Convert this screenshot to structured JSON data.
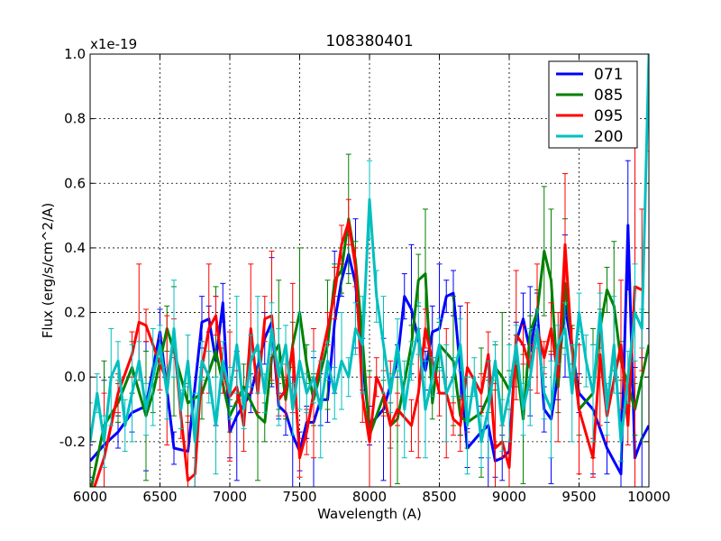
{
  "chart_data": {
    "type": "line",
    "title": "108380401",
    "xlabel": "Wavelength (A)",
    "ylabel": "Flux (erg/s/cm^2/A)",
    "y_offset_label": "x1e-19",
    "xlim": [
      6000,
      10000
    ],
    "ylim": [
      -0.34,
      1.0
    ],
    "x_ticks": [
      6000,
      6500,
      7000,
      7500,
      8000,
      8500,
      9000,
      9500,
      10000
    ],
    "x_tick_labels": [
      "6000",
      "6500",
      "7000",
      "7500",
      "8000",
      "8500",
      "9000",
      "9500",
      "10000"
    ],
    "y_ticks": [
      -0.2,
      0.0,
      0.2,
      0.4,
      0.6,
      0.8,
      1.0
    ],
    "y_tick_labels": [
      "-0.2",
      "0.0",
      "0.2",
      "0.4",
      "0.6",
      "0.8",
      "1.0"
    ],
    "grid": true,
    "legend_position": "top-right",
    "series": [
      {
        "name": "071",
        "color": "#0000ff",
        "x": [
          6000,
          6100,
          6200,
          6300,
          6400,
          6500,
          6600,
          6700,
          6800,
          6850,
          6900,
          6950,
          7000,
          7050,
          7150,
          7250,
          7300,
          7350,
          7400,
          7450,
          7500,
          7550,
          7600,
          7650,
          7700,
          7750,
          7800,
          7850,
          7900,
          7950,
          8000,
          8100,
          8200,
          8250,
          8300,
          8400,
          8450,
          8500,
          8550,
          8600,
          8650,
          8700,
          8800,
          8850,
          8900,
          8950,
          9000,
          9050,
          9100,
          9150,
          9200,
          9250,
          9300,
          9350,
          9400,
          9500,
          9600,
          9700,
          9800,
          9850,
          9900,
          9950,
          10000
        ],
        "y": [
          -0.26,
          -0.21,
          -0.17,
          -0.11,
          -0.09,
          0.14,
          -0.22,
          -0.23,
          0.17,
          0.18,
          0.05,
          0.23,
          -0.17,
          -0.12,
          -0.05,
          0.12,
          0.17,
          -0.09,
          -0.11,
          -0.18,
          -0.23,
          -0.14,
          -0.14,
          -0.07,
          -0.07,
          0.17,
          0.3,
          0.38,
          0.29,
          0.04,
          -0.15,
          -0.1,
          0.05,
          0.25,
          0.21,
          0.02,
          0.14,
          0.15,
          0.25,
          0.26,
          0.02,
          -0.22,
          -0.17,
          -0.15,
          -0.26,
          -0.25,
          -0.23,
          0.11,
          0.18,
          0.08,
          0.21,
          -0.1,
          -0.13,
          0.01,
          0.22,
          -0.05,
          -0.1,
          -0.22,
          -0.3,
          0.47,
          -0.25,
          -0.19,
          -0.15
        ],
        "err": [
          0.05,
          0.2,
          0.05,
          0.06,
          0.2,
          0.07,
          0.05,
          0.2,
          0.08,
          0.04,
          0.2,
          0.06,
          0.08,
          0.2,
          0.06,
          0.08,
          0.2,
          0.04,
          0.07,
          0.18,
          0.06,
          0.05,
          0.2,
          0.08,
          0.07,
          0.22,
          0.05,
          0.06,
          0.2,
          0.08,
          0.06,
          0.22,
          0.05,
          0.07,
          0.2,
          0.06,
          0.08,
          0.2,
          0.05,
          0.07,
          0.2,
          0.06,
          0.08,
          0.2,
          0.05,
          0.07,
          0.2,
          0.06,
          0.08,
          0.2,
          0.05,
          0.07,
          0.2,
          0.08,
          0.22,
          0.06,
          0.2,
          0.08,
          0.25,
          0.2,
          0.28,
          0.25,
          0.3
        ]
      },
      {
        "name": "085",
        "color": "#008000",
        "x": [
          6000,
          6100,
          6200,
          6300,
          6400,
          6450,
          6550,
          6600,
          6700,
          6800,
          6900,
          7000,
          7100,
          7200,
          7250,
          7300,
          7350,
          7400,
          7450,
          7500,
          7550,
          7600,
          7700,
          7750,
          7800,
          7850,
          7900,
          7950,
          8000,
          8100,
          8150,
          8200,
          8300,
          8350,
          8400,
          8450,
          8500,
          8600,
          8650,
          8700,
          8800,
          8850,
          8900,
          8950,
          9000,
          9050,
          9100,
          9150,
          9200,
          9250,
          9300,
          9350,
          9400,
          9450,
          9500,
          9600,
          9650,
          9700,
          9750,
          9800,
          9900,
          9950,
          10000
        ],
        "y": [
          -0.36,
          -0.15,
          -0.08,
          0.03,
          -0.12,
          -0.05,
          0.15,
          0.08,
          -0.08,
          -0.05,
          0.08,
          -0.12,
          -0.03,
          -0.12,
          -0.14,
          0.06,
          0.1,
          -0.07,
          0.1,
          0.2,
          0.04,
          -0.07,
          0.1,
          0.3,
          0.33,
          0.49,
          0.36,
          0.11,
          -0.18,
          -0.06,
          -0.15,
          -0.13,
          0.1,
          0.3,
          0.32,
          -0.08,
          0.1,
          0.05,
          -0.12,
          -0.14,
          -0.11,
          -0.06,
          0.03,
          0.0,
          -0.04,
          0.05,
          -0.13,
          0.14,
          0.2,
          0.39,
          0.3,
          -0.03,
          0.29,
          0.1,
          -0.1,
          -0.05,
          0.15,
          0.27,
          0.22,
          0.05,
          -0.1,
          0.0,
          0.1
        ],
        "err": [
          0.08,
          0.2,
          0.06,
          0.08,
          0.2,
          0.06,
          0.07,
          0.2,
          0.06,
          0.08,
          0.2,
          0.05,
          0.07,
          0.2,
          0.06,
          0.08,
          0.2,
          0.06,
          0.07,
          0.2,
          0.06,
          0.08,
          0.2,
          0.05,
          0.07,
          0.2,
          0.06,
          0.08,
          0.2,
          0.05,
          0.07,
          0.2,
          0.06,
          0.08,
          0.2,
          0.05,
          0.07,
          0.2,
          0.06,
          0.08,
          0.2,
          0.05,
          0.07,
          0.2,
          0.06,
          0.08,
          0.2,
          0.05,
          0.07,
          0.2,
          0.22,
          0.08,
          0.2,
          0.06,
          0.08,
          0.2,
          0.06,
          0.07,
          0.2,
          0.06,
          0.08,
          0.2,
          0.1
        ]
      },
      {
        "name": "095",
        "color": "#ff0000",
        "x": [
          6000,
          6100,
          6200,
          6300,
          6350,
          6400,
          6500,
          6550,
          6600,
          6650,
          6700,
          6750,
          6800,
          6850,
          6900,
          6950,
          7000,
          7050,
          7100,
          7150,
          7200,
          7250,
          7300,
          7350,
          7400,
          7450,
          7500,
          7550,
          7600,
          7700,
          7750,
          7800,
          7850,
          7900,
          7950,
          8000,
          8050,
          8100,
          8150,
          8200,
          8300,
          8350,
          8400,
          8500,
          8550,
          8600,
          8650,
          8700,
          8800,
          8850,
          8900,
          8950,
          9000,
          9050,
          9100,
          9150,
          9200,
          9250,
          9300,
          9350,
          9400,
          9450,
          9500,
          9600,
          9650,
          9700,
          9800,
          9850,
          9900,
          9950
        ],
        "y": [
          -0.38,
          -0.25,
          -0.05,
          0.07,
          0.17,
          0.16,
          0.04,
          -0.01,
          0.12,
          -0.12,
          -0.32,
          -0.3,
          0.03,
          0.15,
          0.19,
          0.02,
          -0.06,
          -0.03,
          -0.15,
          0.15,
          -0.05,
          0.18,
          0.19,
          -0.07,
          -0.04,
          0.09,
          -0.25,
          -0.17,
          -0.05,
          0.15,
          0.26,
          0.41,
          0.48,
          0.34,
          -0.06,
          -0.2,
          0.0,
          -0.05,
          -0.15,
          -0.1,
          -0.15,
          -0.05,
          0.15,
          -0.05,
          -0.05,
          -0.13,
          -0.15,
          0.03,
          -0.05,
          0.07,
          -0.22,
          -0.2,
          -0.28,
          0.13,
          0.1,
          0.03,
          0.15,
          0.06,
          0.15,
          0.0,
          0.41,
          0.08,
          -0.1,
          -0.25,
          0.07,
          -0.12,
          0.1,
          -0.15,
          0.28,
          0.27
        ],
        "err": [
          0.05,
          0.2,
          0.06,
          0.07,
          0.18,
          0.05,
          0.08,
          0.2,
          0.06,
          0.07,
          0.2,
          0.05,
          0.08,
          0.2,
          0.06,
          0.07,
          0.2,
          0.05,
          0.08,
          0.2,
          0.06,
          0.07,
          0.2,
          0.05,
          0.08,
          0.2,
          0.06,
          0.07,
          0.2,
          0.05,
          0.08,
          0.06,
          0.07,
          0.06,
          0.08,
          0.2,
          0.06,
          0.07,
          0.2,
          0.05,
          0.08,
          0.2,
          0.06,
          0.07,
          0.2,
          0.05,
          0.08,
          0.2,
          0.06,
          0.07,
          0.2,
          0.05,
          0.08,
          0.2,
          0.06,
          0.07,
          0.2,
          0.05,
          0.08,
          0.2,
          0.22,
          0.07,
          0.2,
          0.06,
          0.22,
          0.08,
          0.2,
          0.06,
          0.68,
          0.25
        ]
      },
      {
        "name": "200",
        "color": "#00bfbf",
        "x": [
          6000,
          6050,
          6100,
          6150,
          6200,
          6250,
          6300,
          6350,
          6400,
          6450,
          6500,
          6550,
          6600,
          6650,
          6700,
          6750,
          6800,
          6850,
          6900,
          6950,
          7000,
          7050,
          7100,
          7150,
          7200,
          7250,
          7300,
          7350,
          7400,
          7450,
          7500,
          7550,
          7600,
          7650,
          7700,
          7750,
          7800,
          7850,
          7900,
          7950,
          8000,
          8050,
          8100,
          8150,
          8200,
          8250,
          8300,
          8350,
          8400,
          8450,
          8500,
          8550,
          8600,
          8650,
          8700,
          8750,
          8800,
          8850,
          8900,
          8950,
          9000,
          9050,
          9100,
          9150,
          9200,
          9250,
          9300,
          9350,
          9400,
          9450,
          9500,
          9550,
          9600,
          9650,
          9700,
          9750,
          9800,
          9850,
          9900,
          9950,
          10000
        ],
        "y": [
          -0.2,
          -0.05,
          -0.2,
          0.0,
          0.05,
          -0.15,
          -0.05,
          0.05,
          -0.1,
          0.0,
          0.1,
          -0.05,
          0.15,
          -0.1,
          0.05,
          -0.2,
          0.05,
          0.0,
          -0.15,
          0.05,
          -0.05,
          0.1,
          -0.1,
          0.05,
          0.1,
          -0.05,
          0.15,
          0.0,
          0.1,
          -0.1,
          0.05,
          -0.05,
          0.0,
          -0.1,
          0.05,
          -0.05,
          0.05,
          0.0,
          0.15,
          0.1,
          0.55,
          0.25,
          0.1,
          -0.05,
          0.1,
          -0.1,
          0.05,
          0.15,
          -0.1,
          0.0,
          0.1,
          -0.05,
          0.0,
          0.1,
          -0.15,
          0.0,
          -0.2,
          -0.1,
          0.05,
          -0.15,
          -0.05,
          0.1,
          -0.1,
          0.0,
          0.15,
          -0.05,
          -0.1,
          0.1,
          0.15,
          -0.05,
          0.2,
          0.05,
          -0.05,
          0.2,
          -0.1,
          0.1,
          -0.2,
          0.0,
          0.2,
          0.15,
          1.0
        ],
        "err": [
          0.12,
          0.06,
          0.08,
          0.15,
          0.06,
          0.08,
          0.15,
          0.06,
          0.08,
          0.15,
          0.06,
          0.08,
          0.15,
          0.06,
          0.08,
          0.15,
          0.06,
          0.08,
          0.15,
          0.06,
          0.08,
          0.15,
          0.06,
          0.08,
          0.15,
          0.06,
          0.08,
          0.15,
          0.06,
          0.08,
          0.15,
          0.06,
          0.08,
          0.15,
          0.06,
          0.08,
          0.15,
          0.06,
          0.08,
          0.15,
          0.12,
          0.08,
          0.15,
          0.06,
          0.08,
          0.15,
          0.06,
          0.08,
          0.15,
          0.06,
          0.08,
          0.15,
          0.06,
          0.08,
          0.15,
          0.06,
          0.08,
          0.15,
          0.06,
          0.08,
          0.15,
          0.06,
          0.08,
          0.15,
          0.06,
          0.08,
          0.15,
          0.06,
          0.08,
          0.15,
          0.06,
          0.08,
          0.15,
          0.06,
          0.08,
          0.15,
          0.06,
          0.08,
          0.15,
          0.06,
          0.3
        ]
      }
    ]
  }
}
